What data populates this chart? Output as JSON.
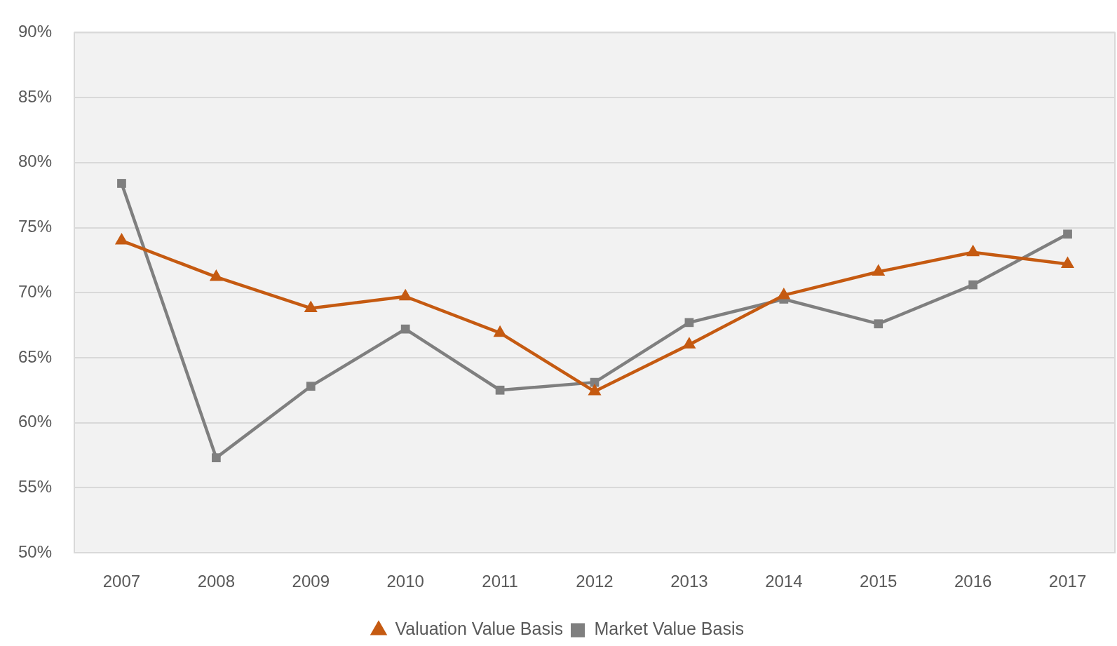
{
  "chart_data": {
    "type": "line",
    "categories": [
      "2007",
      "2008",
      "2009",
      "2010",
      "2011",
      "2012",
      "2013",
      "2014",
      "2015",
      "2016",
      "2017"
    ],
    "series": [
      {
        "name": "Valuation Value Basis",
        "color": "#c55a11",
        "marker": "triangle",
        "values": [
          74,
          71.2,
          68.8,
          69.7,
          66.9,
          62.4,
          66,
          69.8,
          71.6,
          73.1,
          72.2
        ]
      },
      {
        "name": "Market Value Basis",
        "color": "#7f7f7f",
        "marker": "square",
        "values": [
          78.4,
          57.3,
          62.8,
          67.2,
          62.5,
          63.1,
          67.7,
          69.5,
          67.6,
          70.6,
          74.5
        ]
      }
    ],
    "ylim": [
      50,
      90
    ],
    "yticks": [
      {
        "value": 50,
        "label": "50%"
      },
      {
        "value": 55,
        "label": "55%"
      },
      {
        "value": 60,
        "label": "60%"
      },
      {
        "value": 65,
        "label": "65%"
      },
      {
        "value": 70,
        "label": "70%"
      },
      {
        "value": 75,
        "label": "75%"
      },
      {
        "value": 80,
        "label": "80%"
      },
      {
        "value": 85,
        "label": "85%"
      },
      {
        "value": 90,
        "label": "90%"
      }
    ],
    "grid": "y",
    "legend": "bottom"
  }
}
